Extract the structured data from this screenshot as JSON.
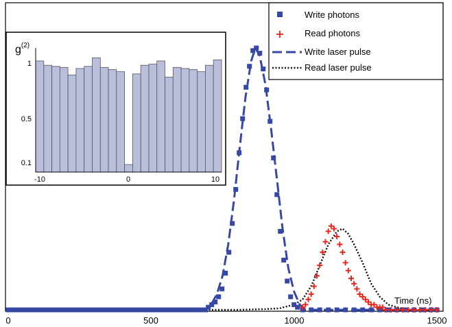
{
  "chart_data": [
    {
      "type": "scatter",
      "title": "",
      "xlabel": "Time (ns)",
      "ylabel": "",
      "xlim": [
        0,
        1500
      ],
      "ylim": [
        0,
        1.0
      ],
      "x_ticks": [
        "0",
        "500",
        "1000",
        "1500"
      ],
      "grid": false,
      "legend_position": "top-right",
      "series": [
        {
          "name": "Write photons",
          "kind": "markers",
          "marker": "square",
          "color": "#3548a5",
          "points": [
            [
              0,
              0.0
            ],
            [
              15,
              0.0
            ],
            [
              30,
              0.0
            ],
            [
              45,
              0.0
            ],
            [
              60,
              0.0
            ],
            [
              75,
              0.0
            ],
            [
              90,
              0.0
            ],
            [
              105,
              0.0
            ],
            [
              120,
              0.0
            ],
            [
              135,
              0.0
            ],
            [
              150,
              0.0
            ],
            [
              165,
              0.0
            ],
            [
              180,
              0.0
            ],
            [
              195,
              0.0
            ],
            [
              210,
              0.0
            ],
            [
              225,
              0.0
            ],
            [
              240,
              0.0
            ],
            [
              255,
              0.0
            ],
            [
              270,
              0.0
            ],
            [
              285,
              0.0
            ],
            [
              300,
              0.0
            ],
            [
              315,
              0.0
            ],
            [
              330,
              0.0
            ],
            [
              345,
              0.0
            ],
            [
              360,
              0.0
            ],
            [
              375,
              0.0
            ],
            [
              390,
              0.0
            ],
            [
              405,
              0.0
            ],
            [
              420,
              0.0
            ],
            [
              435,
              0.0
            ],
            [
              450,
              0.0
            ],
            [
              465,
              0.0
            ],
            [
              480,
              0.0
            ],
            [
              495,
              0.0
            ],
            [
              510,
              0.0
            ],
            [
              525,
              0.0
            ],
            [
              540,
              0.0
            ],
            [
              555,
              0.0
            ],
            [
              570,
              0.0
            ],
            [
              585,
              0.0
            ],
            [
              600,
              0.0
            ],
            [
              615,
              0.0
            ],
            [
              630,
              0.0
            ],
            [
              645,
              0.0
            ],
            [
              660,
              0.0
            ],
            [
              675,
              0.0
            ],
            [
              690,
              0.0
            ],
            [
              700,
              0.01
            ],
            [
              712,
              0.02
            ],
            [
              724,
              0.03
            ],
            [
              736,
              0.05
            ],
            [
              748,
              0.08
            ],
            [
              760,
              0.14
            ],
            [
              772,
              0.22
            ],
            [
              784,
              0.33
            ],
            [
              796,
              0.46
            ],
            [
              808,
              0.6
            ],
            [
              820,
              0.73
            ],
            [
              832,
              0.85
            ],
            [
              844,
              0.93
            ],
            [
              856,
              0.99
            ],
            [
              868,
              1.0
            ],
            [
              880,
              0.98
            ],
            [
              892,
              0.92
            ],
            [
              904,
              0.84
            ],
            [
              916,
              0.72
            ],
            [
              928,
              0.58
            ],
            [
              940,
              0.44
            ],
            [
              952,
              0.3
            ],
            [
              964,
              0.19
            ],
            [
              976,
              0.11
            ],
            [
              988,
              0.05
            ],
            [
              1000,
              0.02
            ],
            [
              1012,
              0.01
            ],
            [
              1030,
              0.0
            ],
            [
              1060,
              0.0
            ],
            [
              1090,
              0.0
            ],
            [
              1120,
              0.0
            ],
            [
              1150,
              0.0
            ],
            [
              1180,
              0.0
            ],
            [
              1210,
              0.0
            ],
            [
              1240,
              0.0
            ],
            [
              1270,
              0.0
            ],
            [
              1300,
              0.0
            ],
            [
              1330,
              0.0
            ],
            [
              1360,
              0.0
            ],
            [
              1390,
              0.0
            ],
            [
              1420,
              0.0
            ],
            [
              1450,
              0.0
            ],
            [
              1480,
              0.0
            ],
            [
              1500,
              0.0
            ]
          ]
        },
        {
          "name": "Read photons",
          "kind": "markers",
          "marker": "plus",
          "color": "#e8261c",
          "points": [
            [
              1030,
              0.01
            ],
            [
              1040,
              0.02
            ],
            [
              1050,
              0.04
            ],
            [
              1060,
              0.06
            ],
            [
              1070,
              0.09
            ],
            [
              1080,
              0.13
            ],
            [
              1090,
              0.17
            ],
            [
              1100,
              0.22
            ],
            [
              1110,
              0.26
            ],
            [
              1120,
              0.3
            ],
            [
              1130,
              0.32
            ],
            [
              1140,
              0.31
            ],
            [
              1150,
              0.28
            ],
            [
              1160,
              0.25
            ],
            [
              1170,
              0.22
            ],
            [
              1180,
              0.18
            ],
            [
              1190,
              0.15
            ],
            [
              1200,
              0.12
            ],
            [
              1210,
              0.1
            ],
            [
              1220,
              0.08
            ],
            [
              1230,
              0.06
            ],
            [
              1240,
              0.05
            ],
            [
              1250,
              0.04
            ],
            [
              1260,
              0.03
            ],
            [
              1270,
              0.02
            ],
            [
              1280,
              0.02
            ],
            [
              1290,
              0.01
            ],
            [
              1300,
              0.01
            ],
            [
              1310,
              0.01
            ],
            [
              1320,
              0.0
            ],
            [
              1340,
              0.0
            ],
            [
              1360,
              0.0
            ],
            [
              1380,
              0.0
            ],
            [
              1400,
              0.0
            ],
            [
              1420,
              0.0
            ],
            [
              1440,
              0.0
            ],
            [
              1460,
              0.0
            ],
            [
              1480,
              0.0
            ],
            [
              1500,
              0.0
            ]
          ]
        },
        {
          "name": "Write laser pulse",
          "kind": "line",
          "dash": "long-dash",
          "color": "#3548a5",
          "points": [
            [
              0,
              0.0
            ],
            [
              690,
              0.0
            ],
            [
              710,
              0.02
            ],
            [
              730,
              0.06
            ],
            [
              750,
              0.13
            ],
            [
              770,
              0.25
            ],
            [
              790,
              0.42
            ],
            [
              810,
              0.62
            ],
            [
              830,
              0.81
            ],
            [
              850,
              0.95
            ],
            [
              865,
              1.0
            ],
            [
              880,
              0.97
            ],
            [
              900,
              0.86
            ],
            [
              920,
              0.69
            ],
            [
              940,
              0.5
            ],
            [
              960,
              0.31
            ],
            [
              980,
              0.16
            ],
            [
              1000,
              0.07
            ],
            [
              1020,
              0.02
            ],
            [
              1040,
              0.0
            ],
            [
              1500,
              0.0
            ]
          ]
        },
        {
          "name": "Read laser pulse",
          "kind": "line",
          "dash": "dotted",
          "color": "#111111",
          "points": [
            [
              0,
              0.0
            ],
            [
              800,
              0.0
            ],
            [
              900,
              0.003
            ],
            [
              950,
              0.006
            ],
            [
              1000,
              0.02
            ],
            [
              1030,
              0.04
            ],
            [
              1060,
              0.09
            ],
            [
              1090,
              0.17
            ],
            [
              1120,
              0.25
            ],
            [
              1150,
              0.3
            ],
            [
              1170,
              0.31
            ],
            [
              1190,
              0.29
            ],
            [
              1210,
              0.25
            ],
            [
              1240,
              0.18
            ],
            [
              1270,
              0.1
            ],
            [
              1300,
              0.05
            ],
            [
              1330,
              0.02
            ],
            [
              1360,
              0.01
            ],
            [
              1400,
              0.0
            ],
            [
              1500,
              0.0
            ]
          ]
        }
      ]
    },
    {
      "type": "bar",
      "title": "g(2)",
      "ylabel_base": "g",
      "ylabel_sup": "(2)",
      "x_ticks": [
        "-10",
        "0",
        "10"
      ],
      "y_ticks": [
        "0.1",
        "0.5",
        "1"
      ],
      "color": "#b9bedd",
      "categories": [
        -11,
        -10,
        -9,
        -8,
        -7,
        -6,
        -5,
        -4,
        -3,
        -2,
        -1,
        0,
        1,
        2,
        3,
        4,
        5,
        6,
        7,
        8,
        9,
        10,
        11
      ],
      "values": [
        1.03,
        0.99,
        0.98,
        0.97,
        0.9,
        0.96,
        0.98,
        1.06,
        0.97,
        0.95,
        0.93,
        0.07,
        0.91,
        0.99,
        1.0,
        1.03,
        0.88,
        0.97,
        0.96,
        0.95,
        0.93,
        0.99,
        1.04
      ],
      "ylim": [
        0,
        1.15
      ]
    }
  ]
}
